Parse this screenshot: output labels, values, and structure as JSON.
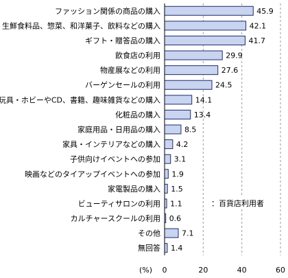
{
  "chart_data": {
    "type": "bar",
    "orientation": "horizontal",
    "categories": [
      "ファッション関係の商品の購入",
      "生鮮食料品、惣菜、和洋菓子、飲料などの購入",
      "ギフト・贈答品の購入",
      "飲食店の利用",
      "物産展などの利用",
      "バーゲンセールの利用",
      "玩具・ホビーやCD、書籍、趣味雑貨などの購入",
      "化粧品の購入",
      "家庭用品・日用品の購入",
      "家具・インテリアなどの購入",
      "子供向けイベントへの参加",
      "映画などのタイアップイベントへの参加",
      "家電製品の購入",
      "ビューティサロンの利用",
      "カルチャースクールの利用",
      "その他",
      "無回答"
    ],
    "series": [
      {
        "name": "：百貨店利用者",
        "values": [
          45.9,
          42.1,
          41.7,
          29.9,
          27.6,
          24.5,
          14.1,
          13.4,
          8.5,
          4.2,
          3.1,
          1.9,
          1.5,
          1.1,
          0.6,
          7.1,
          1.4
        ],
        "value_labels": [
          "45.9",
          "42.1",
          "41.7",
          "29.9",
          "27.6",
          "24.5",
          "14.1",
          "13.4",
          "8.5",
          "4.2",
          "3.1",
          "1.9",
          "1.5",
          "1.1",
          "0.6",
          "7.1",
          "1.4"
        ]
      }
    ],
    "xlim": [
      0,
      60
    ],
    "xticks": [
      0,
      20,
      40,
      60
    ],
    "xtick_labels": [
      "0",
      "20",
      "40",
      "60"
    ],
    "unit_label": "(%)",
    "grid": true,
    "legend_position": "bottom-right",
    "colors": {
      "bar_fill": "#c8d4f0",
      "bar_stroke": "#1f2a6b"
    }
  }
}
